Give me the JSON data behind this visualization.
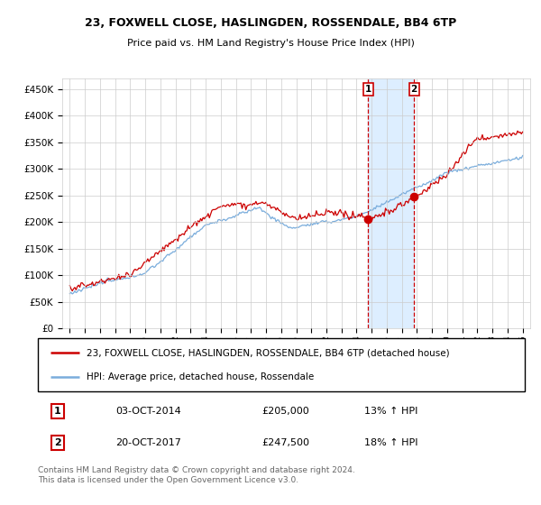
{
  "title": "23, FOXWELL CLOSE, HASLINGDEN, ROSSENDALE, BB4 6TP",
  "subtitle": "Price paid vs. HM Land Registry's House Price Index (HPI)",
  "legend_line1": "23, FOXWELL CLOSE, HASLINGDEN, ROSSENDALE, BB4 6TP (detached house)",
  "legend_line2": "HPI: Average price, detached house, Rossendale",
  "sale1_label": "1",
  "sale2_label": "2",
  "sale1_date": "03-OCT-2014",
  "sale1_price": "£205,000",
  "sale1_hpi": "13% ↑ HPI",
  "sale2_date": "20-OCT-2017",
  "sale2_price": "£247,500",
  "sale2_hpi": "18% ↑ HPI",
  "footer": "Contains HM Land Registry data © Crown copyright and database right 2024.\nThis data is licensed under the Open Government Licence v3.0.",
  "red_color": "#cc0000",
  "blue_color": "#7aaddc",
  "shade_color": "#ddeeff",
  "grid_color": "#cccccc",
  "bg_color": "#ffffff",
  "ylim": [
    0,
    470000
  ],
  "yticks": [
    0,
    50000,
    100000,
    150000,
    200000,
    250000,
    300000,
    350000,
    400000,
    450000
  ],
  "xlim_min": 1994.5,
  "xlim_max": 2025.5,
  "sale1_x": 2014.75,
  "sale2_x": 2017.8,
  "sale1_y": 205000,
  "sale2_y": 247500,
  "title_fontsize": 9,
  "subtitle_fontsize": 8,
  "ytick_fontsize": 7.5,
  "xtick_fontsize": 6.5,
  "legend_fontsize": 7.5,
  "table_fontsize": 8,
  "footer_fontsize": 6.5
}
